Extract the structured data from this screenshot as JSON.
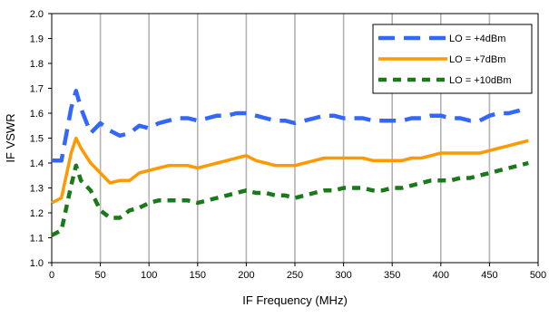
{
  "chart_data": {
    "type": "line",
    "title": "",
    "xlabel": "IF Frequency (MHz)",
    "ylabel": "IF VSWR",
    "xlim": [
      0,
      500
    ],
    "ylim": [
      1.0,
      2.0
    ],
    "x_ticks": [
      0,
      50,
      100,
      150,
      200,
      250,
      300,
      350,
      400,
      450,
      500
    ],
    "y_ticks": [
      1.0,
      1.1,
      1.2,
      1.3,
      1.4,
      1.5,
      1.6,
      1.7,
      1.8,
      1.9,
      2.0
    ],
    "x_tick_labels": [
      "0",
      "50",
      "100",
      "150",
      "200",
      "250",
      "300",
      "350",
      "400",
      "450",
      "500"
    ],
    "y_tick_labels": [
      "1.0",
      "1.1",
      "1.2",
      "1.3",
      "1.4",
      "1.5",
      "1.6",
      "1.7",
      "1.8",
      "1.9",
      "2.0"
    ],
    "grid": "vertical",
    "legend_position": "top-right",
    "series": [
      {
        "name": "LO = +4dBm",
        "color": "#3366ff",
        "dash": "long-dash",
        "x": [
          0,
          10,
          20,
          25,
          30,
          40,
          50,
          60,
          70,
          80,
          90,
          100,
          110,
          120,
          130,
          140,
          150,
          160,
          170,
          180,
          190,
          200,
          210,
          220,
          230,
          240,
          250,
          260,
          270,
          280,
          290,
          300,
          310,
          320,
          330,
          340,
          350,
          360,
          370,
          380,
          390,
          400,
          410,
          420,
          430,
          440,
          450,
          460,
          470,
          480,
          490
        ],
        "y": [
          1.41,
          1.41,
          1.62,
          1.69,
          1.62,
          1.52,
          1.56,
          1.53,
          1.51,
          1.52,
          1.55,
          1.54,
          1.56,
          1.57,
          1.58,
          1.58,
          1.57,
          1.58,
          1.59,
          1.59,
          1.6,
          1.6,
          1.59,
          1.58,
          1.57,
          1.57,
          1.56,
          1.57,
          1.58,
          1.59,
          1.59,
          1.58,
          1.58,
          1.58,
          1.57,
          1.57,
          1.57,
          1.57,
          1.58,
          1.58,
          1.59,
          1.59,
          1.58,
          1.58,
          1.57,
          1.57,
          1.59,
          1.6,
          1.6,
          1.61,
          1.62
        ]
      },
      {
        "name": "LO = +7dBm",
        "color": "#ff9900",
        "dash": "solid",
        "x": [
          0,
          10,
          20,
          25,
          30,
          40,
          50,
          60,
          70,
          80,
          90,
          100,
          110,
          120,
          130,
          140,
          150,
          160,
          170,
          180,
          190,
          200,
          210,
          220,
          230,
          240,
          250,
          260,
          270,
          280,
          290,
          300,
          310,
          320,
          330,
          340,
          350,
          360,
          370,
          380,
          390,
          400,
          410,
          420,
          430,
          440,
          450,
          460,
          470,
          480,
          490
        ],
        "y": [
          1.24,
          1.26,
          1.44,
          1.5,
          1.46,
          1.4,
          1.36,
          1.32,
          1.33,
          1.33,
          1.36,
          1.37,
          1.38,
          1.39,
          1.39,
          1.39,
          1.38,
          1.39,
          1.4,
          1.41,
          1.42,
          1.43,
          1.41,
          1.4,
          1.39,
          1.39,
          1.39,
          1.4,
          1.41,
          1.42,
          1.42,
          1.42,
          1.42,
          1.42,
          1.41,
          1.41,
          1.41,
          1.41,
          1.42,
          1.42,
          1.43,
          1.44,
          1.44,
          1.44,
          1.44,
          1.44,
          1.45,
          1.46,
          1.47,
          1.48,
          1.49
        ]
      },
      {
        "name": "LO = +10dBm",
        "color": "#1a7a1a",
        "dash": "short-dash",
        "x": [
          0,
          10,
          20,
          25,
          30,
          40,
          50,
          60,
          70,
          80,
          90,
          100,
          110,
          120,
          130,
          140,
          150,
          160,
          170,
          180,
          190,
          200,
          210,
          220,
          230,
          240,
          250,
          260,
          270,
          280,
          290,
          300,
          310,
          320,
          330,
          340,
          350,
          360,
          370,
          380,
          390,
          400,
          410,
          420,
          430,
          440,
          450,
          460,
          470,
          480,
          490
        ],
        "y": [
          1.11,
          1.13,
          1.31,
          1.39,
          1.33,
          1.29,
          1.21,
          1.18,
          1.18,
          1.21,
          1.22,
          1.24,
          1.25,
          1.25,
          1.25,
          1.25,
          1.24,
          1.25,
          1.26,
          1.27,
          1.28,
          1.29,
          1.28,
          1.28,
          1.27,
          1.27,
          1.26,
          1.27,
          1.28,
          1.29,
          1.29,
          1.3,
          1.3,
          1.3,
          1.29,
          1.29,
          1.3,
          1.3,
          1.31,
          1.32,
          1.33,
          1.33,
          1.33,
          1.34,
          1.34,
          1.35,
          1.36,
          1.37,
          1.38,
          1.39,
          1.4
        ]
      }
    ]
  }
}
